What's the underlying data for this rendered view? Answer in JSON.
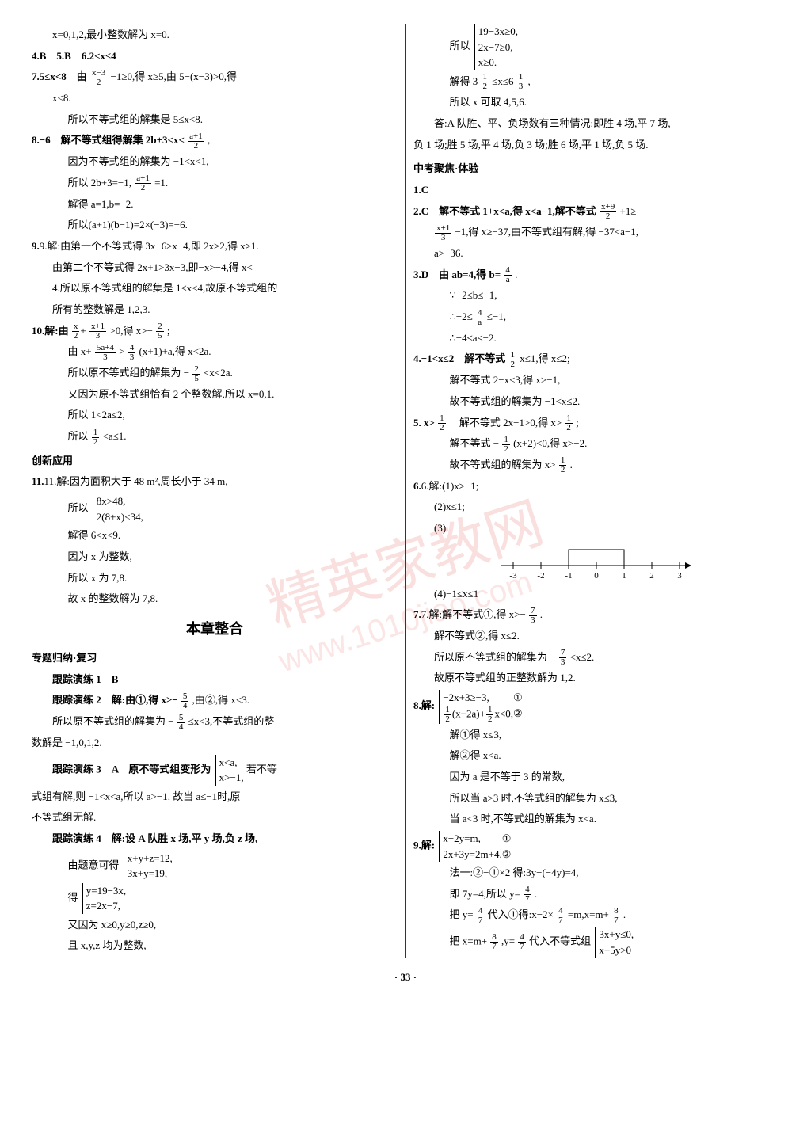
{
  "left": {
    "l1": "x=0,1,2,最小整数解为 x=0.",
    "l2": "4.B　5.B　6.2<x≤4",
    "l3_a": "7.5≤x<8　由",
    "l3_b": "−1≥0,得 x≥5,由 5−(x−3)>0,得",
    "l4": "x<8.",
    "l5": "所以不等式组的解集是 5≤x<8.",
    "l6_a": "8.−6　解不等式组得解集 2b+3<x<",
    "l6_b": ",",
    "l7": "因为不等式组的解集为 −1<x<1,",
    "l8_a": "所以 2b+3=−1,",
    "l8_b": "=1.",
    "l9": "解得 a=1,b=−2.",
    "l10": "所以(a+1)(b−1)=2×(−3)=−6.",
    "l11": "9.解:由第一个不等式得 3x−6≥x−4,即 2x≥2,得 x≥1.",
    "l12": "由第二个不等式得 2x+1>3x−3,即−x>−4,得 x<",
    "l13": "4.所以原不等式组的解集是 1≤x<4,故原不等式组的",
    "l14": "所有的整数解是 1,2,3.",
    "l15_a": "10.解:由",
    "l15_b": ">0,得 x>−",
    "l15_c": ";",
    "l16_a": "由 x+",
    "l16_b": ">",
    "l16_c": "(x+1)+a,得 x<2a.",
    "l17_a": "所以原不等式组的解集为 −",
    "l17_b": "<x<2a.",
    "l18": "又因为原不等式组恰有 2 个整数解,所以 x=0,1.",
    "l19": "所以 1<2a≤2,",
    "l20_a": "所以",
    "l20_b": "<a≤1.",
    "innov": "创新应用",
    "l21": "11.解:因为面积大于 48 m²,周长小于 34 m,",
    "l22": "所以",
    "l22_b1": "8x>48,",
    "l22_b2": "2(8+x)<34,",
    "l23": "解得 6<x<9.",
    "l24": "因为 x 为整数,",
    "l25": "所以 x 为 7,8.",
    "l26": "故 x 的整数解为 7,8.",
    "chapter": "本章整合",
    "sec1": "专题归纳·复习",
    "t1": "跟踪演练 1　B",
    "t2_a": "跟踪演练 2　解:由①,得 x≥−",
    "t2_b": ",由②,得 x<3.",
    "t3_a": "所以原不等式组的解集为 −",
    "t3_b": "≤x<3,不等式组的整",
    "t4": "数解是 −1,0,1,2.",
    "t5_a": "跟踪演练 3　A　原不等式组变形为",
    "t5_b1": "x<a,",
    "t5_b2": "x>−1,",
    "t5_c": "若不等",
    "t6": "式组有解,则 −1<x<a,所以 a>−1. 故当 a≤−1时,原",
    "t7": "不等式组无解.",
    "t8": "跟踪演练 4　解:设 A 队胜 x 场,平 y 场,负 z 场,",
    "t9": "由题意可得",
    "t9_b1": "x+y+z=12,",
    "t9_b2": "3x+y=19,",
    "t10": "得",
    "t10_b1": "y=19−3x,",
    "t10_b2": "z=2x−7,",
    "t11": "又因为 x≥0,y≥0,z≥0,",
    "t12": "且 x,y,z 均为整数,",
    "t13": "所以",
    "t13_b1": "19−3x≥0,",
    "t13_b2": "2x−7≥0,",
    "t13_b3": "x≥0."
  },
  "right": {
    "r1_a": "解得 3",
    "r1_b": "≤x≤6",
    "r1_c": ",",
    "r2": "所以 x 可取 4,5,6.",
    "r3": "答:A 队胜、平、负场数有三种情况:即胜 4 场,平 7 场,",
    "r4": "负 1 场;胜 5 场,平 4 场,负 3 场;胜 6 场,平 1 场,负 5 场.",
    "sec2": "中考聚焦·体验",
    "r5": "1.C",
    "r6_a": "2.C　解不等式 1+x<a,得 x<a−1,解不等式",
    "r6_b": "+1≥",
    "r7_a": "",
    "r7_b": "−1,得 x≥−37,由不等式组有解,得 −37<a−1,",
    "r8": "a>−36.",
    "r9_a": "3.D　由 ab=4,得 b=",
    "r9_b": ".",
    "r10": "∵−2≤b≤−1,",
    "r11_a": "∴−2≤",
    "r11_b": "≤−1,",
    "r12": "∴−4≤a≤−2.",
    "r13_a": "4.−1<x≤2　解不等式",
    "r13_b": "x≤1,得 x≤2;",
    "r14": "解不等式 2−x<3,得 x>−1,",
    "r15": "故不等式组的解集为 −1<x≤2.",
    "r16_a": "5. x>",
    "r16_b": "　解不等式 2x−1>0,得 x>",
    "r16_c": ";",
    "r17_a": "解不等式 −",
    "r17_b": "(x+2)<0,得 x>−2.",
    "r18_a": "故不等式组的解集为 x>",
    "r18_b": ".",
    "r19": "6.解:(1)x≥−1;",
    "r20": "(2)x≤1;",
    "r21": "(3)",
    "numline": {
      "ticks": [
        -3,
        -2,
        -1,
        0,
        1,
        2,
        3
      ],
      "fill_from": -1,
      "fill_to": 1
    },
    "r22": "(4)−1≤x≤1",
    "r23_a": "7.解:解不等式①,得 x>−",
    "r23_b": ".",
    "r24": "解不等式②,得 x≤2.",
    "r25_a": "所以原不等式组的解集为 −",
    "r25_b": "<x≤2.",
    "r26": "故原不等式组的正整数解为 1,2.",
    "r27": "8.解:",
    "r27_b1": "−2x+3≥−3,",
    "r27_b2_a": "(x−2a)+",
    "r27_b2_b": "x<0,",
    "r27_e1": "①",
    "r27_e2": "②",
    "r28": "解①得 x≤3,",
    "r29": "解②得 x<a.",
    "r30": "因为 a 是不等于 3 的常数,",
    "r31": "所以当 a>3 时,不等式组的解集为 x≤3,",
    "r32": "当 a<3 时,不等式组的解集为 x<a.",
    "r33": "9.解:",
    "r33_b1": "x−2y=m,",
    "r33_b2": "2x+3y=2m+4.",
    "r33_e1": "①",
    "r33_e2": "②",
    "r34": "法一:②−①×2 得:3y−(−4y)=4,",
    "r35_a": "即 7y=4,所以 y=",
    "r35_b": ".",
    "r36_a": "把 y=",
    "r36_b": "代入①得:x−2×",
    "r36_c": "=m,x=m+",
    "r36_d": ".",
    "r37_a": "把 x=m+",
    "r37_b": ",y=",
    "r37_c": "代入不等式组",
    "r37_b1": "3x+y≤0,",
    "r37_b2": "x+5y>0"
  },
  "pagenum": "· 33 ·",
  "watermark": "精英家教网",
  "watermark_url": "www.1010jiao.com"
}
